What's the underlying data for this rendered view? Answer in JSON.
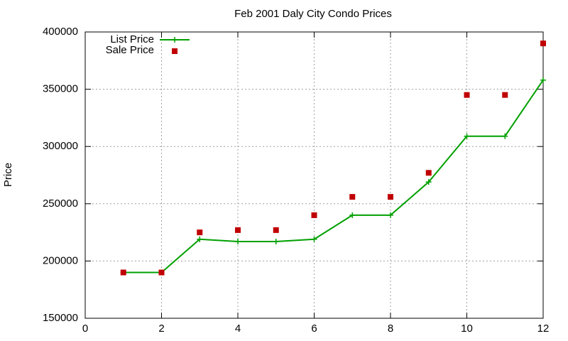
{
  "chart_data": {
    "type": "line",
    "title": "Feb 2001 Daly City Condo Prices",
    "y_label": "Price",
    "x": [
      1,
      2,
      3,
      4,
      5,
      6,
      7,
      8,
      9,
      10,
      11,
      12
    ],
    "series": [
      {
        "name": "List Price",
        "color": "#00a000",
        "marker": "plus",
        "line": true,
        "values": [
          190000,
          190000,
          219000,
          217000,
          217000,
          219000,
          240000,
          240000,
          269000,
          309000,
          309000,
          358000
        ]
      },
      {
        "name": "Sale Price",
        "color": "#c00000",
        "marker": "square",
        "line": false,
        "values": [
          190000,
          190000,
          225000,
          227000,
          227000,
          240000,
          256000,
          256000,
          277000,
          345000,
          345000,
          390000
        ]
      }
    ],
    "xlim": [
      0,
      12
    ],
    "xticks": [
      0,
      2,
      4,
      6,
      8,
      10,
      12
    ],
    "ylim": [
      150000,
      400000
    ],
    "yticks": [
      150000,
      200000,
      250000,
      300000,
      350000,
      400000
    ],
    "grid": true,
    "legend": "top-left"
  }
}
